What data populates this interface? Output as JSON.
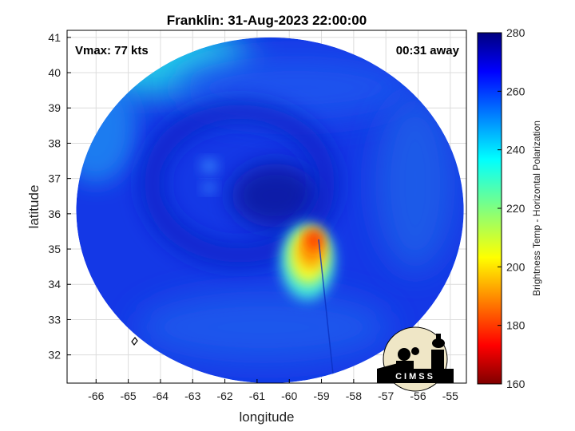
{
  "chart_data": {
    "type": "heatmap",
    "title": "Franklin: 31-Aug-2023 22:00:00",
    "xlabel": "longitude",
    "ylabel": "latitude",
    "xlim": [
      -66.9,
      -54.5
    ],
    "ylim": [
      31.2,
      41.2
    ],
    "x_ticks": [
      -66,
      -65,
      -64,
      -63,
      -62,
      -61,
      -60,
      -59,
      -58,
      -57,
      -56,
      -55
    ],
    "y_ticks": [
      32,
      33,
      34,
      35,
      36,
      37,
      38,
      39,
      40,
      41
    ],
    "grid": true,
    "annotations": {
      "vmax": "Vmax: 77 kts",
      "time_away": "00:31 away"
    },
    "colorbar": {
      "label": "Brightness Temp - Horizontal Polarization",
      "range": [
        160,
        280
      ],
      "ticks": [
        160,
        180,
        200,
        220,
        240,
        260,
        280
      ],
      "colormap": "jet"
    },
    "swath": {
      "center": [
        -60.6,
        36.1
      ],
      "radius_deg_lat": 4.9
    },
    "features": {
      "background_temp": 262,
      "core_min_temp": 190,
      "core_center": [
        -59.3,
        34.9
      ]
    },
    "logo_text": "CIMSS"
  }
}
